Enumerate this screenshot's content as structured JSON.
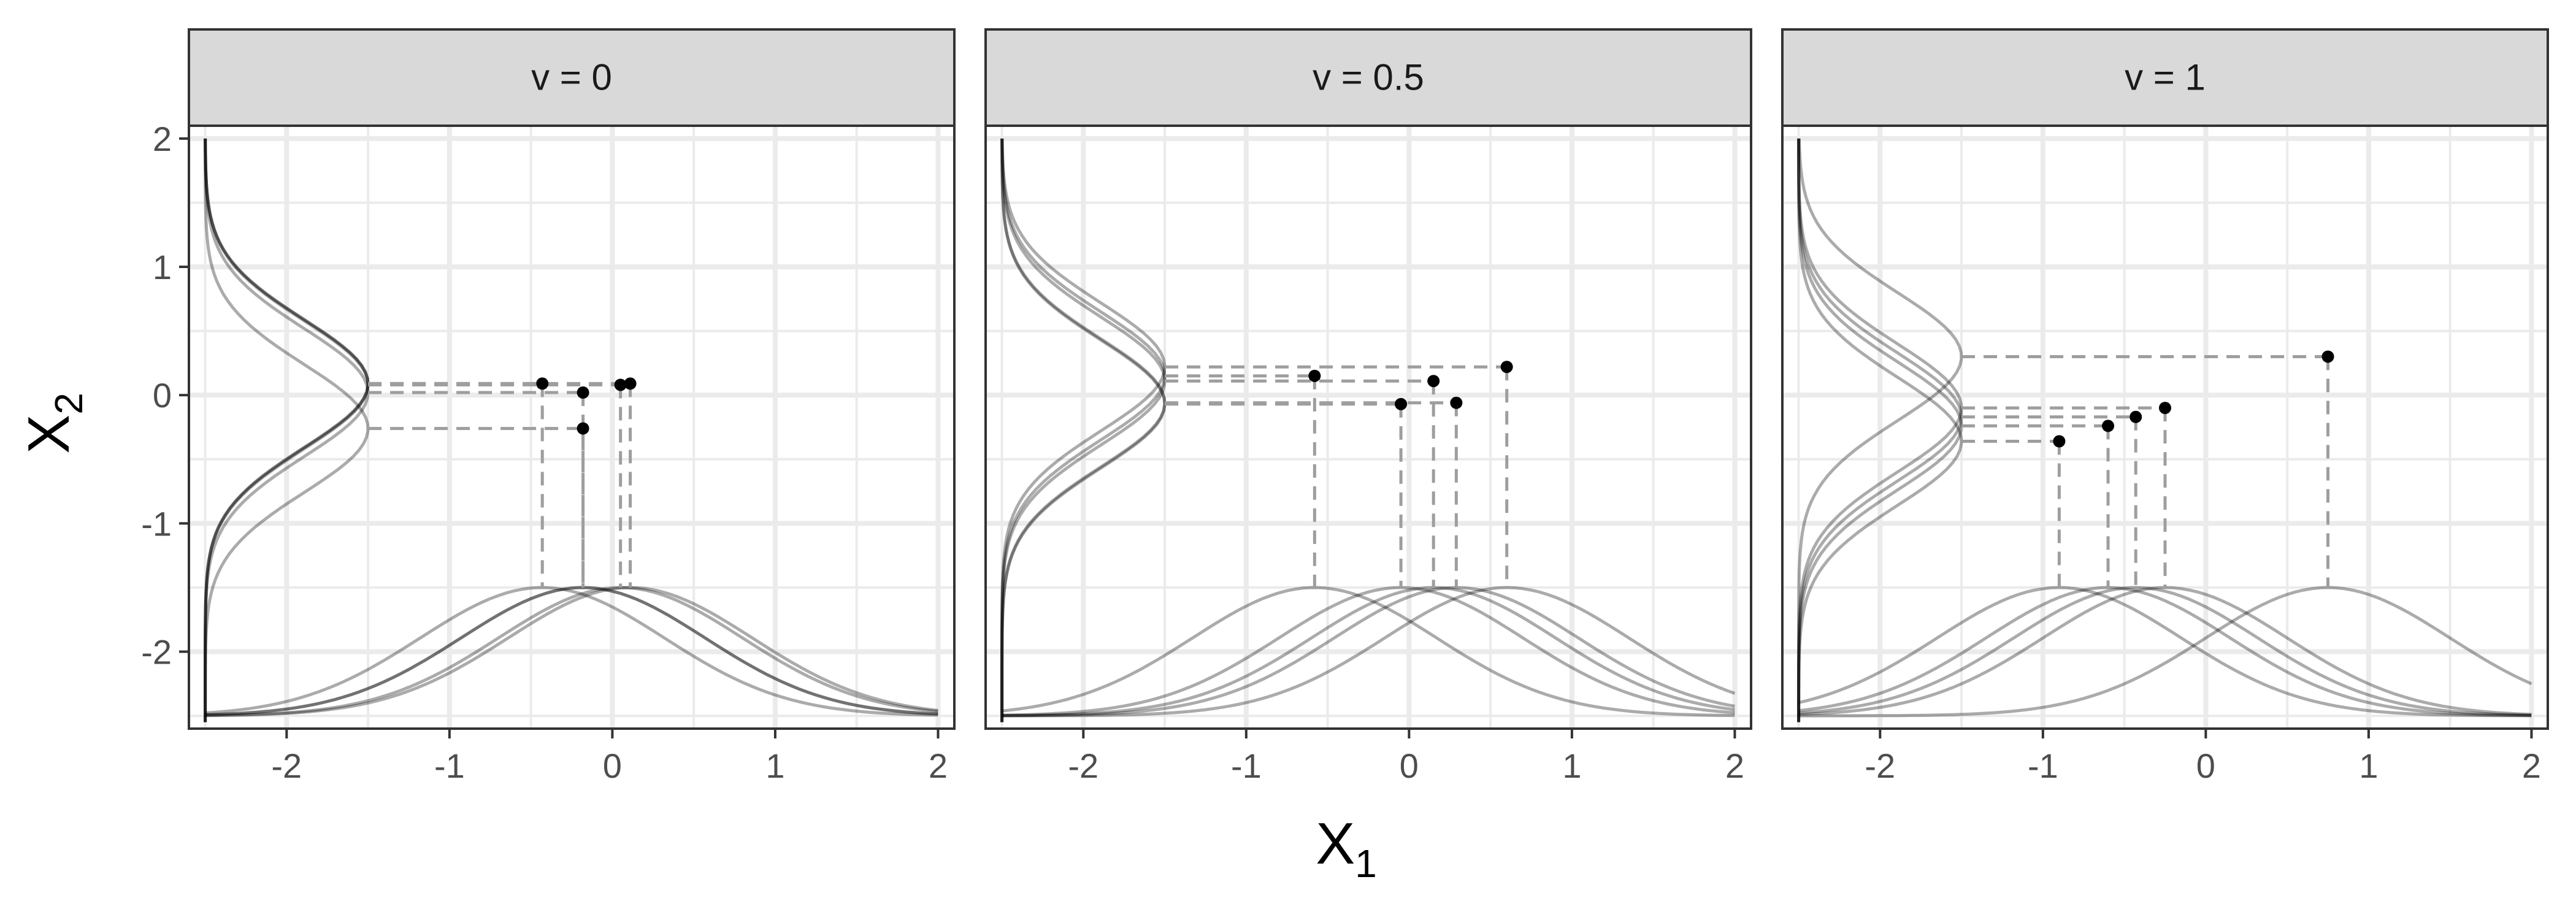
{
  "chart_data": {
    "type": "line",
    "xlabel": "X",
    "xlabel_subscript": "1",
    "ylabel": "X",
    "ylabel_subscript": "2",
    "xlim": [
      -2.6,
      2.1
    ],
    "ylim": [
      -2.6,
      2.1
    ],
    "x_ticks": [
      -2,
      -1,
      0,
      1,
      2
    ],
    "y_ticks": [
      -2,
      -1,
      0,
      1,
      2
    ],
    "x_tick_labels": [
      "-2",
      "-1",
      "0",
      "1",
      "2"
    ],
    "y_tick_labels": [
      "-2",
      "-1",
      "0",
      "1",
      "2"
    ],
    "grid": true,
    "density_baseline_x": -2.5,
    "density_peak_x": -1.5,
    "density_baseline_y": -2.5,
    "density_peak_y": -1.5,
    "panels": [
      {
        "label": "v = 0",
        "points": [
          {
            "x": -0.43,
            "y": 0.09
          },
          {
            "x": -0.18,
            "y": 0.02
          },
          {
            "x": 0.05,
            "y": 0.08
          },
          {
            "x": 0.11,
            "y": 0.09
          },
          {
            "x": -0.18,
            "y": -0.26
          }
        ]
      },
      {
        "label": "v = 0.5",
        "points": [
          {
            "x": -0.58,
            "y": 0.15
          },
          {
            "x": -0.05,
            "y": -0.07
          },
          {
            "x": 0.15,
            "y": 0.11
          },
          {
            "x": 0.29,
            "y": -0.06
          },
          {
            "x": 0.6,
            "y": 0.22
          }
        ]
      },
      {
        "label": "v = 1",
        "points": [
          {
            "x": -0.9,
            "y": -0.36
          },
          {
            "x": -0.6,
            "y": -0.24
          },
          {
            "x": -0.43,
            "y": -0.17
          },
          {
            "x": -0.25,
            "y": -0.1
          },
          {
            "x": 0.75,
            "y": 0.3
          }
        ]
      }
    ]
  },
  "colors": {
    "curve": "#000000",
    "dash": "#9e9e9e",
    "point": "#000000",
    "grid": "#ebebeb",
    "strip_fill": "#d9d9d9",
    "panel_border": "#333333"
  }
}
